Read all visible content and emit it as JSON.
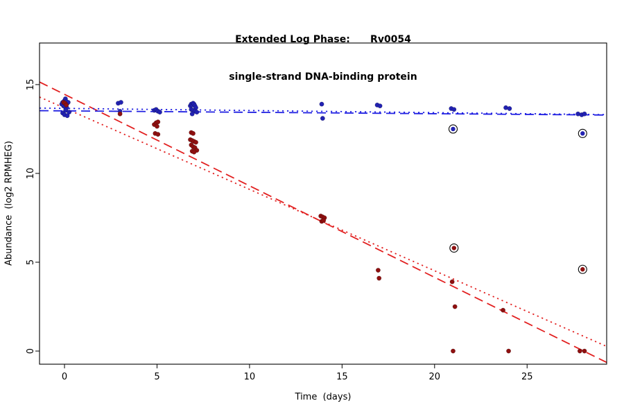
{
  "title": {
    "line1": "Extended Log Phase:      Rv0054",
    "line2": "single-strand DNA-binding protein"
  },
  "chart_data": {
    "type": "scatter",
    "title": "Extended Log Phase: Rv0054 single-strand DNA-binding protein",
    "xlabel": "Time  (days)",
    "ylabel": "Abundance  (log2 RPMHEG)",
    "xlim": [
      -1.35,
      29.3
    ],
    "ylim": [
      -0.74,
      17.34
    ],
    "x_ticks": [
      0,
      5,
      10,
      15,
      20,
      25
    ],
    "y_ticks": [
      0,
      5,
      10,
      15
    ],
    "grid": "off",
    "legend": "none",
    "series": [
      {
        "name": "blue-condition",
        "color": "#2222b2",
        "points": [
          [
            -0.15,
            13.9
          ],
          [
            -0.1,
            14.0
          ],
          [
            0,
            14.1
          ],
          [
            0.05,
            14.2
          ],
          [
            0.1,
            14.05
          ],
          [
            0.15,
            13.95
          ],
          [
            0.2,
            14.0
          ],
          [
            -0.05,
            13.8
          ],
          [
            0.02,
            13.75
          ],
          [
            0.12,
            13.7
          ],
          [
            0.06,
            13.55
          ],
          [
            -0.1,
            13.4
          ],
          [
            0,
            13.3
          ],
          [
            0.15,
            13.25
          ],
          [
            0.25,
            13.45
          ],
          [
            2.9,
            13.95
          ],
          [
            3.05,
            14.0
          ],
          [
            3.0,
            13.5
          ],
          [
            4.85,
            13.55
          ],
          [
            4.95,
            13.6
          ],
          [
            5.05,
            13.5
          ],
          [
            5.15,
            13.45
          ],
          [
            6.8,
            13.8
          ],
          [
            6.85,
            13.9
          ],
          [
            6.9,
            13.85
          ],
          [
            6.95,
            13.95
          ],
          [
            7.0,
            13.9
          ],
          [
            7.05,
            13.8
          ],
          [
            7.1,
            13.7
          ],
          [
            6.85,
            13.6
          ],
          [
            6.95,
            13.55
          ],
          [
            7.05,
            13.5
          ],
          [
            7.15,
            13.45
          ],
          [
            6.9,
            13.35
          ],
          [
            13.9,
            13.9
          ],
          [
            13.95,
            13.1
          ],
          [
            16.9,
            13.85
          ],
          [
            17.05,
            13.8
          ],
          [
            20.9,
            13.65
          ],
          [
            21.05,
            13.6
          ],
          [
            23.85,
            13.7
          ],
          [
            24.05,
            13.65
          ],
          [
            27.75,
            13.35
          ],
          [
            27.95,
            13.3
          ],
          [
            28.1,
            13.35
          ]
        ]
      },
      {
        "name": "red-condition",
        "color": "#8f1010",
        "points": [
          [
            -0.05,
            14.0
          ],
          [
            0.03,
            13.95
          ],
          [
            0.1,
            13.85
          ],
          [
            3.0,
            13.35
          ],
          [
            4.85,
            12.75
          ],
          [
            4.95,
            12.85
          ],
          [
            5.05,
            12.9
          ],
          [
            5.0,
            12.65
          ],
          [
            4.9,
            12.25
          ],
          [
            5.05,
            12.2
          ],
          [
            6.85,
            12.3
          ],
          [
            6.95,
            12.25
          ],
          [
            6.8,
            11.9
          ],
          [
            6.9,
            11.85
          ],
          [
            7.0,
            11.8
          ],
          [
            7.1,
            11.75
          ],
          [
            6.85,
            11.6
          ],
          [
            6.95,
            11.5
          ],
          [
            7.05,
            11.45
          ],
          [
            7.15,
            11.3
          ],
          [
            6.9,
            11.25
          ],
          [
            7.0,
            11.2
          ],
          [
            13.85,
            7.6
          ],
          [
            13.95,
            7.55
          ],
          [
            14.05,
            7.5
          ],
          [
            13.9,
            7.3
          ],
          [
            14.0,
            7.35
          ],
          [
            16.95,
            4.55
          ],
          [
            17.0,
            4.1
          ],
          [
            20.95,
            3.9
          ],
          [
            21.1,
            2.5
          ],
          [
            21.0,
            0.0
          ],
          [
            23.7,
            2.3
          ],
          [
            24.0,
            0.0
          ],
          [
            27.85,
            0.0
          ],
          [
            28.1,
            0.0
          ]
        ]
      }
    ],
    "circled_points": [
      {
        "x": 21.0,
        "y": 12.5,
        "series": 0
      },
      {
        "x": 28.0,
        "y": 12.25,
        "series": 0
      },
      {
        "x": 21.05,
        "y": 5.8,
        "series": 1
      },
      {
        "x": 28.0,
        "y": 4.6,
        "series": 1
      }
    ],
    "trend_lines": [
      {
        "series": "red",
        "style": "longdash",
        "intercept": 14.45,
        "slope": -0.515,
        "color": "#e22020"
      },
      {
        "series": "red",
        "style": "dotted",
        "intercept": 13.68,
        "slope": -0.458,
        "color": "#e22020"
      },
      {
        "series": "blue",
        "style": "longdash",
        "intercept": 13.52,
        "slope": -0.008,
        "color": "#2020e2"
      },
      {
        "series": "blue",
        "style": "dotted",
        "intercept": 13.66,
        "slope": -0.012,
        "color": "#2020e2"
      }
    ]
  }
}
